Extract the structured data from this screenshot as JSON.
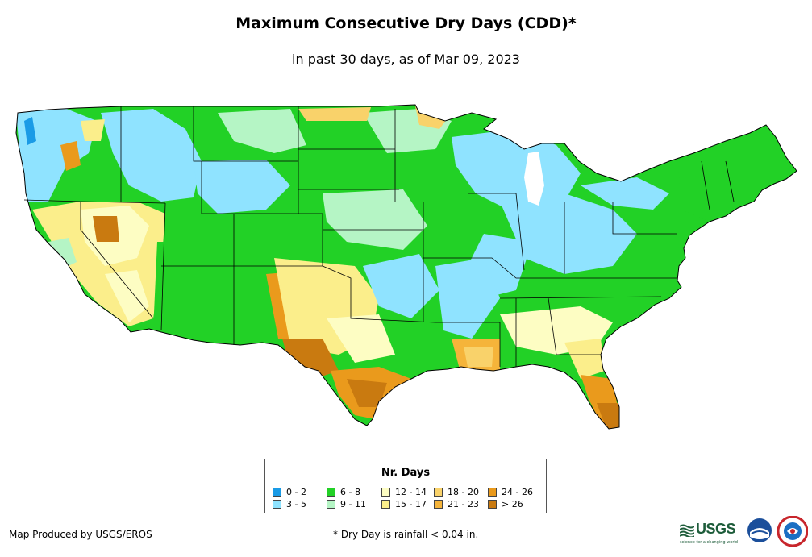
{
  "title": "Maximum Consecutive Dry Days (CDD)*",
  "subtitle": "in past 30 days, as of Mar 09, 2023",
  "legend": {
    "title": "Nr. Days",
    "classes": [
      {
        "label": "0 - 2",
        "color": "#1a9be6"
      },
      {
        "label": "3 - 5",
        "color": "#8fe3ff"
      },
      {
        "label": "6 - 8",
        "color": "#22d126"
      },
      {
        "label": "9 - 11",
        "color": "#b5f5c5"
      },
      {
        "label": "12 - 14",
        "color": "#fdfdc3"
      },
      {
        "label": "15 - 17",
        "color": "#fbee8b"
      },
      {
        "label": "18 - 20",
        "color": "#f9d26a"
      },
      {
        "label": "21 - 23",
        "color": "#f5b43a"
      },
      {
        "label": "24 - 26",
        "color": "#ea9a1c"
      },
      {
        "label": "> 26",
        "color": "#c97a10"
      }
    ]
  },
  "credit": "Map Produced by USGS/EROS",
  "footnote": "* Dry Day is rainfall < 0.04 in.",
  "logos": {
    "usgs": "USGS",
    "usgs_tagline": "science for a changing world",
    "noaa": "noaa-logo",
    "nws": "nws-logo"
  }
}
